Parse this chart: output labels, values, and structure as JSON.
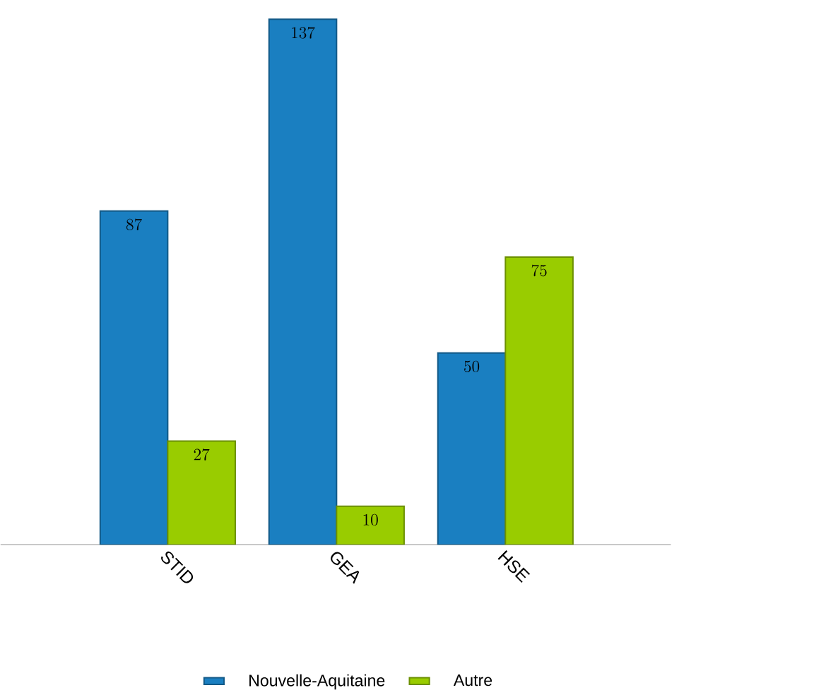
{
  "chart_data": {
    "type": "bar",
    "categories": [
      "STID",
      "GEA",
      "HSE"
    ],
    "series": [
      {
        "name": "Nouvelle-Aquitaine",
        "color": "#1a7fc1",
        "values": [
          87,
          137,
          50
        ]
      },
      {
        "name": "Autre",
        "color": "#99cc00",
        "values": [
          27,
          10,
          75
        ]
      }
    ],
    "data_labels": true,
    "legend": "bottom"
  }
}
